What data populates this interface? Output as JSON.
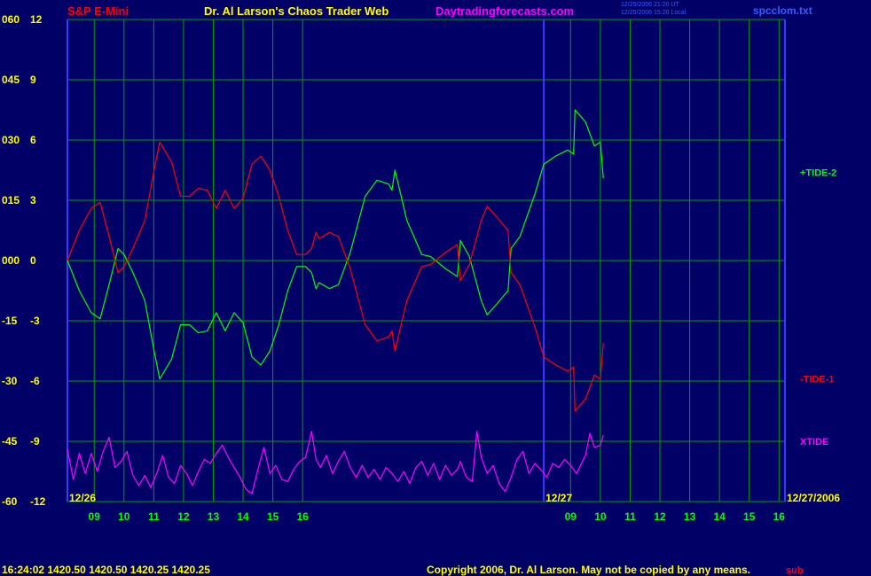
{
  "header": {
    "symbol": "S&P E-Mini",
    "title": "Dr. Al Larson's Chaos Trader Web",
    "website": "Daytradingforecasts.com",
    "timestamp_line1": "12/25/2006 21:20 UT",
    "timestamp_line2": "12/25/2006 15:20 Local",
    "filename": "spcclom.txt"
  },
  "footer": {
    "quote": "16:24:02  1420.50 1420.50 1420.25 1420.25",
    "copyright": "Copyright 2006, Dr. Al Larson. May not be copied by any means.",
    "overlay_text": "sub"
  },
  "colors": {
    "background": "#000066",
    "grid": "#00a000",
    "axis_labels": "#ffff00",
    "time_labels": "#00ff00",
    "symbol": "#ff0000",
    "title": "#ffff00",
    "website": "#ff00ff",
    "tide2": "#00ff00",
    "tide1": "#ff0000",
    "xtide": "#ff00ff",
    "day_divider": "#3a3aff"
  },
  "chart_data": {
    "type": "line",
    "y_left_ticks": [
      "060",
      "045",
      "030",
      "015",
      "000",
      "-15",
      "-30",
      "-45",
      "-60"
    ],
    "y_right_ticks": [
      "12",
      "9",
      "6",
      "3",
      "0",
      "-3",
      "-6",
      "-9",
      "-12"
    ],
    "ylim": [
      -12,
      12
    ],
    "x_hour_ticks": [
      "09",
      "10",
      "11",
      "12",
      "13",
      "14",
      "15",
      "16",
      "09",
      "10",
      "11",
      "12",
      "13",
      "14",
      "15",
      "16"
    ],
    "x_hours": [
      9,
      10,
      11,
      12,
      13,
      14,
      15,
      16,
      25,
      26,
      27,
      28,
      29,
      30,
      31,
      32
    ],
    "xlim": [
      8.1,
      32.2
    ],
    "date_labels": [
      {
        "text": "12/26",
        "x": 8.1
      },
      {
        "text": "12/27",
        "x": 24.1
      },
      {
        "text": "12/27/2006",
        "x": 32.2
      }
    ],
    "day_divider_x": 24.1,
    "series": [
      {
        "name": "+TIDE-2",
        "points": [
          [
            8.1,
            0
          ],
          [
            8.5,
            -1.5
          ],
          [
            8.9,
            -2.6
          ],
          [
            9.2,
            -2.9
          ],
          [
            9.5,
            -1.2
          ],
          [
            9.8,
            0.6
          ],
          [
            10.0,
            0.3
          ],
          [
            10.3,
            -0.6
          ],
          [
            10.7,
            -2.0
          ],
          [
            11.0,
            -4.4
          ],
          [
            11.2,
            -5.9
          ],
          [
            11.6,
            -4.9
          ],
          [
            11.9,
            -3.2
          ],
          [
            12.2,
            -3.2
          ],
          [
            12.5,
            -3.6
          ],
          [
            12.8,
            -3.5
          ],
          [
            13.1,
            -2.6
          ],
          [
            13.4,
            -3.5
          ],
          [
            13.7,
            -2.6
          ],
          [
            14.0,
            -3.1
          ],
          [
            14.3,
            -4.8
          ],
          [
            14.6,
            -5.2
          ],
          [
            14.9,
            -4.5
          ],
          [
            15.2,
            -3.2
          ],
          [
            15.5,
            -1.5
          ],
          [
            15.8,
            -0.3
          ],
          [
            16.1,
            -0.3
          ],
          [
            16.3,
            -0.6
          ],
          [
            16.45,
            -1.4
          ],
          [
            16.55,
            -1.1
          ],
          [
            16.9,
            -1.4
          ],
          [
            17.2,
            -1.2
          ],
          [
            17.6,
            0.4
          ],
          [
            18.1,
            3.2
          ],
          [
            18.5,
            4.0
          ],
          [
            18.9,
            3.8
          ],
          [
            19.0,
            3.5
          ],
          [
            19.1,
            4.5
          ],
          [
            19.5,
            2.0
          ],
          [
            20.0,
            0.3
          ],
          [
            20.3,
            0.2
          ],
          [
            20.8,
            -0.4
          ],
          [
            21.2,
            -0.8
          ],
          [
            21.3,
            1.0
          ],
          [
            21.6,
            0.2
          ],
          [
            22.0,
            -2.0
          ],
          [
            22.2,
            -2.7
          ],
          [
            22.5,
            -2.2
          ],
          [
            22.9,
            -1.5
          ],
          [
            23.0,
            0.6
          ],
          [
            23.3,
            1.2
          ],
          [
            23.8,
            3.3
          ],
          [
            24.1,
            4.8
          ],
          [
            24.5,
            5.2
          ],
          [
            24.9,
            5.5
          ],
          [
            25.1,
            5.3
          ],
          [
            25.15,
            7.5
          ],
          [
            25.5,
            6.9
          ],
          [
            25.8,
            5.7
          ],
          [
            26.0,
            5.9
          ],
          [
            26.1,
            4.1
          ]
        ],
        "label_text": "+TIDE-2",
        "label_value": 4.4
      },
      {
        "name": "-TIDE-1",
        "points": [
          [
            8.1,
            0
          ],
          [
            8.5,
            1.5
          ],
          [
            8.9,
            2.6
          ],
          [
            9.2,
            2.9
          ],
          [
            9.5,
            1.2
          ],
          [
            9.8,
            -0.6
          ],
          [
            10.0,
            -0.3
          ],
          [
            10.3,
            0.6
          ],
          [
            10.7,
            2.0
          ],
          [
            11.0,
            4.4
          ],
          [
            11.2,
            5.9
          ],
          [
            11.6,
            4.9
          ],
          [
            11.9,
            3.2
          ],
          [
            12.2,
            3.2
          ],
          [
            12.5,
            3.6
          ],
          [
            12.8,
            3.5
          ],
          [
            13.1,
            2.6
          ],
          [
            13.4,
            3.5
          ],
          [
            13.7,
            2.6
          ],
          [
            14.0,
            3.1
          ],
          [
            14.3,
            4.8
          ],
          [
            14.6,
            5.2
          ],
          [
            14.9,
            4.5
          ],
          [
            15.2,
            3.2
          ],
          [
            15.5,
            1.5
          ],
          [
            15.8,
            0.3
          ],
          [
            16.1,
            0.3
          ],
          [
            16.3,
            0.6
          ],
          [
            16.45,
            1.4
          ],
          [
            16.55,
            1.1
          ],
          [
            16.9,
            1.4
          ],
          [
            17.2,
            1.2
          ],
          [
            17.6,
            -0.4
          ],
          [
            18.1,
            -3.2
          ],
          [
            18.5,
            -4.0
          ],
          [
            18.9,
            -3.8
          ],
          [
            19.0,
            -3.5
          ],
          [
            19.1,
            -4.5
          ],
          [
            19.5,
            -2.0
          ],
          [
            20.0,
            -0.3
          ],
          [
            20.3,
            -0.2
          ],
          [
            20.8,
            0.4
          ],
          [
            21.2,
            0.8
          ],
          [
            21.3,
            -1.0
          ],
          [
            21.6,
            -0.2
          ],
          [
            22.0,
            2.0
          ],
          [
            22.2,
            2.7
          ],
          [
            22.5,
            2.2
          ],
          [
            22.9,
            1.5
          ],
          [
            23.0,
            -0.6
          ],
          [
            23.3,
            -1.2
          ],
          [
            23.8,
            -3.3
          ],
          [
            24.1,
            -4.8
          ],
          [
            24.5,
            -5.2
          ],
          [
            24.9,
            -5.5
          ],
          [
            25.1,
            -5.3
          ],
          [
            25.15,
            -7.5
          ],
          [
            25.5,
            -6.9
          ],
          [
            25.8,
            -5.7
          ],
          [
            26.0,
            -5.9
          ],
          [
            26.1,
            -4.1
          ]
        ],
        "label_text": "-TIDE-1",
        "label_value": -5.9
      },
      {
        "name": "XTIDE",
        "points": [
          [
            8.1,
            -9.4
          ],
          [
            8.3,
            -10.9
          ],
          [
            8.5,
            -9.6
          ],
          [
            8.7,
            -10.6
          ],
          [
            8.9,
            -9.6
          ],
          [
            9.1,
            -10.5
          ],
          [
            9.3,
            -9.5
          ],
          [
            9.5,
            -8.8
          ],
          [
            9.7,
            -10.3
          ],
          [
            9.9,
            -10.0
          ],
          [
            10.1,
            -9.5
          ],
          [
            10.3,
            -10.7
          ],
          [
            10.5,
            -11.2
          ],
          [
            10.7,
            -10.7
          ],
          [
            10.9,
            -11.3
          ],
          [
            11.1,
            -10.6
          ],
          [
            11.3,
            -9.7
          ],
          [
            11.5,
            -10.8
          ],
          [
            11.7,
            -11.1
          ],
          [
            11.9,
            -10.2
          ],
          [
            12.1,
            -10.6
          ],
          [
            12.3,
            -11.2
          ],
          [
            12.5,
            -10.5
          ],
          [
            12.7,
            -9.9
          ],
          [
            12.9,
            -10.1
          ],
          [
            13.1,
            -9.6
          ],
          [
            13.3,
            -9.2
          ],
          [
            13.5,
            -9.8
          ],
          [
            13.7,
            -10.3
          ],
          [
            13.9,
            -10.8
          ],
          [
            14.1,
            -11.4
          ],
          [
            14.3,
            -11.6
          ],
          [
            14.5,
            -10.4
          ],
          [
            14.7,
            -9.3
          ],
          [
            14.9,
            -10.6
          ],
          [
            15.1,
            -10.2
          ],
          [
            15.3,
            -10.9
          ],
          [
            15.5,
            -11.0
          ],
          [
            15.7,
            -10.4
          ],
          [
            15.9,
            -10.0
          ],
          [
            16.1,
            -9.8
          ],
          [
            16.3,
            -8.5
          ],
          [
            16.45,
            -9.9
          ],
          [
            16.6,
            -10.3
          ],
          [
            16.8,
            -9.7
          ],
          [
            17.0,
            -10.6
          ],
          [
            17.2,
            -10.0
          ],
          [
            17.4,
            -9.5
          ],
          [
            17.6,
            -10.3
          ],
          [
            17.8,
            -10.8
          ],
          [
            18.0,
            -10.2
          ],
          [
            18.2,
            -10.8
          ],
          [
            18.4,
            -10.4
          ],
          [
            18.6,
            -10.9
          ],
          [
            18.8,
            -10.3
          ],
          [
            19.0,
            -10.6
          ],
          [
            19.2,
            -11.0
          ],
          [
            19.4,
            -10.5
          ],
          [
            19.6,
            -11.1
          ],
          [
            19.8,
            -10.3
          ],
          [
            20.0,
            -10.0
          ],
          [
            20.2,
            -10.7
          ],
          [
            20.4,
            -10.1
          ],
          [
            20.6,
            -10.9
          ],
          [
            20.8,
            -10.2
          ],
          [
            21.0,
            -10.7
          ],
          [
            21.2,
            -10.4
          ],
          [
            21.3,
            -10.0
          ],
          [
            21.5,
            -10.8
          ],
          [
            21.7,
            -11.0
          ],
          [
            21.85,
            -8.5
          ],
          [
            22.0,
            -9.8
          ],
          [
            22.2,
            -10.6
          ],
          [
            22.4,
            -10.2
          ],
          [
            22.6,
            -11.1
          ],
          [
            22.8,
            -11.5
          ],
          [
            23.0,
            -10.8
          ],
          [
            23.2,
            -9.9
          ],
          [
            23.4,
            -9.5
          ],
          [
            23.6,
            -10.6
          ],
          [
            23.8,
            -10.1
          ],
          [
            24.0,
            -10.4
          ],
          [
            24.2,
            -10.8
          ],
          [
            24.4,
            -10.1
          ],
          [
            24.6,
            -10.3
          ],
          [
            24.8,
            -9.9
          ],
          [
            25.0,
            -10.2
          ],
          [
            25.2,
            -10.6
          ],
          [
            25.4,
            -10.0
          ],
          [
            25.5,
            -9.7
          ],
          [
            25.65,
            -8.6
          ],
          [
            25.8,
            -9.3
          ],
          [
            26.0,
            -9.2
          ],
          [
            26.1,
            -8.7
          ]
        ],
        "label_text": "XTIDE",
        "label_value": -9
      }
    ]
  }
}
